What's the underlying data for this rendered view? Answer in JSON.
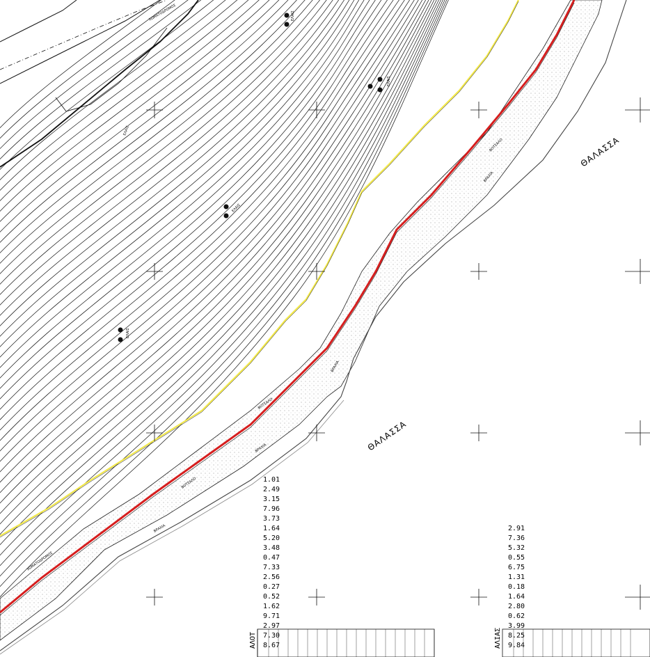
{
  "labels": {
    "sea": "ΘΑΛΑΣΣΑ",
    "olive": "ΕΛΑΙΣ",
    "pebbles": "ΒΟΤΣΑΛΟ",
    "rocks": "ΒΡΑΧΙΑ",
    "dirt_road": "ΧΩΜΑΤΟΔΡΟΜΟΣ"
  },
  "tables": [
    {
      "header": "ΑΛΟΤ",
      "values": [
        "8.67",
        "7.30",
        "2.97",
        "9.71",
        "1.62",
        "0.52",
        "0.27",
        "2.56",
        "7.33",
        "0.47",
        "3.48",
        "5.20",
        "1.64",
        "3.73",
        "7.96",
        "3.15",
        "2.49",
        "1.01"
      ]
    },
    {
      "header": "ΑΛΙΑΣ",
      "values": [
        "9.84",
        "8.25",
        "3.99",
        "0.62",
        "2.80",
        "1.64",
        "0.18",
        "1.31",
        "6.75",
        "0.55",
        "5.32",
        "7.36",
        "2.91"
      ]
    }
  ],
  "colors": {
    "line": "#000000",
    "coast_red": "#d61e1e",
    "path_yellow": "#f2e84a"
  }
}
